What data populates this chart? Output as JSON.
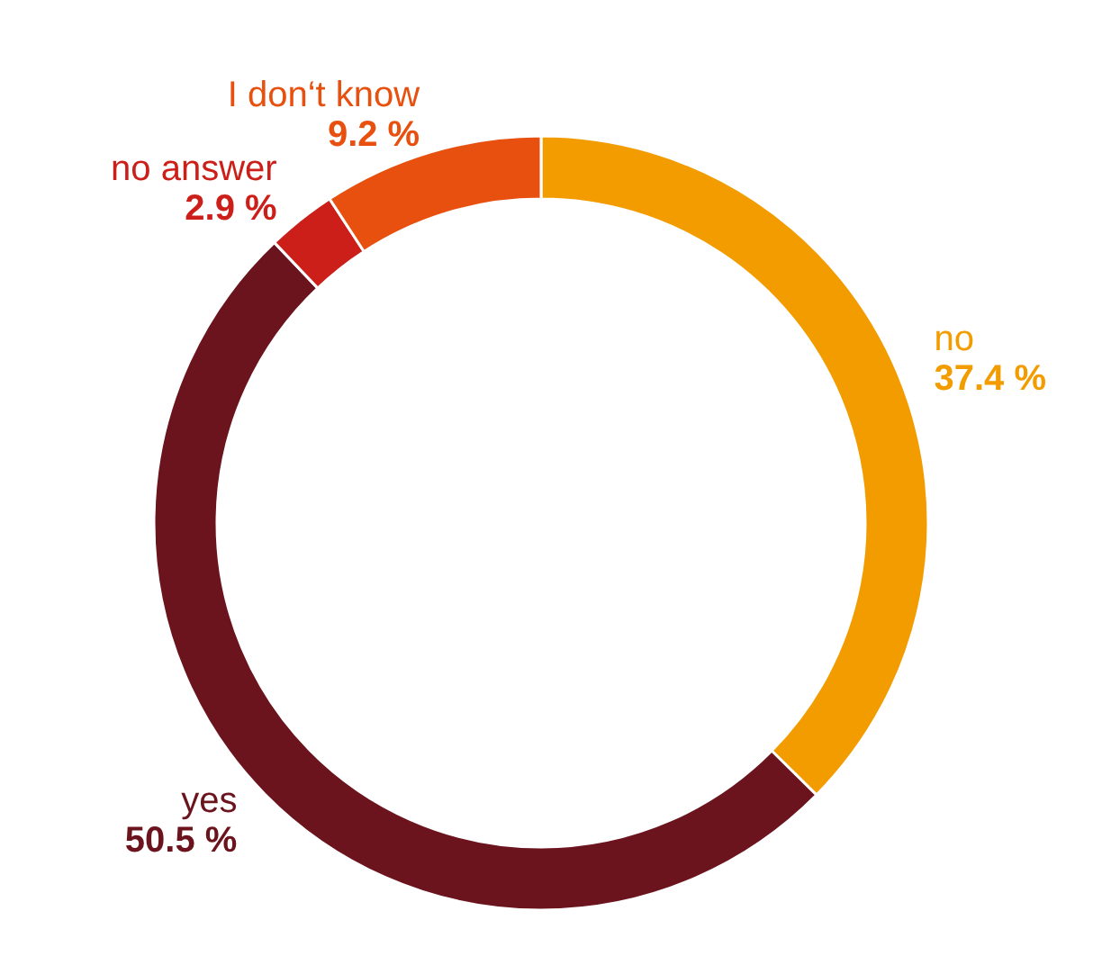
{
  "chart_data": {
    "type": "donut",
    "categories": [
      "no",
      "yes",
      "no answer",
      "I don‘t know"
    ],
    "values": [
      37.4,
      50.5,
      2.9,
      9.2
    ],
    "colors": [
      "#f39c00",
      "#6b141e",
      "#cc1f1a",
      "#e8500f"
    ],
    "value_labels": [
      "37.4 %",
      "50.5 %",
      "2.9 %",
      "9.2 %"
    ]
  }
}
